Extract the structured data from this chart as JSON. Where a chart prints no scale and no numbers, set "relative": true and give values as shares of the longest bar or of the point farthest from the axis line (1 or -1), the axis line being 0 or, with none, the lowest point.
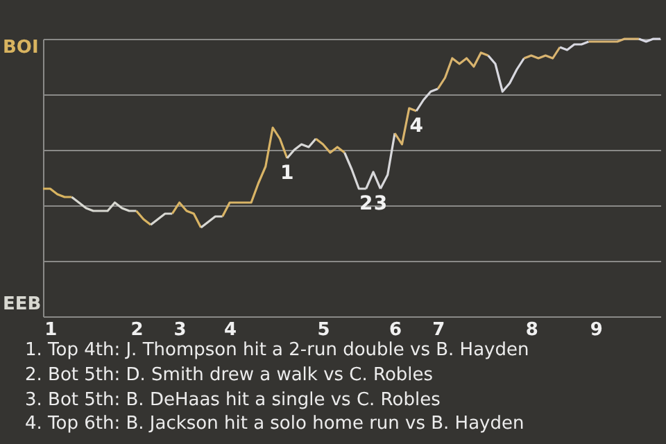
{
  "chart_data": {
    "type": "line",
    "relative": true,
    "categories": [
      null,
      "1",
      null,
      null,
      null,
      null,
      null,
      null,
      null,
      null,
      null,
      null,
      null,
      "2",
      null,
      null,
      null,
      null,
      null,
      "3",
      null,
      null,
      null,
      null,
      null,
      null,
      "4",
      null,
      null,
      null,
      null,
      null,
      null,
      null,
      null,
      null,
      null,
      null,
      null,
      "5",
      null,
      null,
      null,
      null,
      null,
      null,
      null,
      null,
      null,
      "6",
      null,
      null,
      null,
      null,
      null,
      "7",
      null,
      null,
      null,
      null,
      null,
      null,
      null,
      null,
      null,
      null,
      null,
      null,
      "8",
      null,
      null,
      null,
      null,
      null,
      null,
      null,
      null,
      "9",
      null,
      null,
      null,
      null,
      null,
      null,
      null,
      null,
      null
    ],
    "series": [
      {
        "color": "#d9b460",
        "values": [
          0.46,
          0.46,
          0.44,
          0.43,
          0.43,
          null,
          null,
          null,
          null,
          null,
          null,
          null,
          null,
          null,
          null,
          null,
          null,
          null,
          null,
          null,
          null,
          null,
          null,
          null,
          null,
          null,
          null,
          null,
          null,
          null,
          null,
          null,
          null,
          null,
          null,
          null,
          null,
          null,
          null,
          null,
          null,
          null,
          null,
          null,
          null,
          null,
          null,
          null,
          null,
          null,
          null,
          null,
          null,
          null,
          null,
          null,
          null,
          null,
          null,
          null,
          null,
          null,
          null,
          null,
          null,
          null,
          null,
          null,
          null,
          null,
          null,
          null,
          null,
          null,
          null,
          null,
          null,
          null,
          null,
          null,
          null,
          null,
          null,
          null,
          null,
          null,
          null
        ]
      },
      {
        "color": "#d8d8d1",
        "values": [
          null,
          null,
          null,
          null,
          0.43,
          0.41,
          0.39,
          0.38,
          0.38,
          0.38,
          0.41,
          0.39,
          0.38,
          0.38,
          null,
          null,
          null,
          null,
          null,
          null,
          null,
          null,
          null,
          null,
          null,
          null,
          null,
          null,
          null,
          null,
          null,
          null,
          null,
          null,
          null,
          null,
          null,
          null,
          null,
          null,
          null,
          null,
          null,
          null,
          null,
          null,
          null,
          null,
          null,
          null,
          null,
          null,
          null,
          null,
          null,
          null,
          null,
          null,
          null,
          null,
          null,
          null,
          null,
          null,
          null,
          null,
          null,
          null,
          null,
          null,
          null,
          null,
          null,
          null,
          null,
          null,
          null,
          null,
          null,
          null,
          null,
          null,
          null,
          null,
          null,
          null,
          null
        ]
      },
      {
        "color": "#d9b462",
        "values": [
          null,
          null,
          null,
          null,
          null,
          null,
          null,
          null,
          null,
          null,
          null,
          null,
          null,
          0.38,
          0.35,
          0.33,
          null,
          null,
          null,
          null,
          null,
          null,
          null,
          null,
          null,
          null,
          null,
          null,
          null,
          null,
          null,
          null,
          null,
          null,
          null,
          null,
          null,
          null,
          null,
          null,
          null,
          null,
          null,
          null,
          null,
          null,
          null,
          null,
          null,
          null,
          null,
          null,
          null,
          null,
          null,
          null,
          null,
          null,
          null,
          null,
          null,
          null,
          null,
          null,
          null,
          null,
          null,
          null,
          null,
          null,
          null,
          null,
          null,
          null,
          null,
          null,
          null,
          null,
          null,
          null,
          null,
          null,
          null,
          null,
          null,
          null,
          null
        ]
      },
      {
        "color": "#d8d8d3",
        "values": [
          null,
          null,
          null,
          null,
          null,
          null,
          null,
          null,
          null,
          null,
          null,
          null,
          null,
          null,
          null,
          0.33,
          0.35,
          0.37,
          0.37,
          null,
          null,
          null,
          null,
          null,
          null,
          null,
          null,
          null,
          null,
          null,
          null,
          null,
          null,
          null,
          null,
          null,
          null,
          null,
          null,
          null,
          null,
          null,
          null,
          null,
          null,
          null,
          null,
          null,
          null,
          null,
          null,
          null,
          null,
          null,
          null,
          null,
          null,
          null,
          null,
          null,
          null,
          null,
          null,
          null,
          null,
          null,
          null,
          null,
          null,
          null,
          null,
          null,
          null,
          null,
          null,
          null,
          null,
          null,
          null,
          null,
          null,
          null,
          null,
          null,
          null,
          null,
          null
        ]
      },
      {
        "color": "#d9b464",
        "values": [
          null,
          null,
          null,
          null,
          null,
          null,
          null,
          null,
          null,
          null,
          null,
          null,
          null,
          null,
          null,
          null,
          null,
          null,
          0.37,
          0.41,
          0.38,
          0.37,
          0.32,
          null,
          null,
          null,
          null,
          null,
          null,
          null,
          null,
          null,
          null,
          null,
          null,
          null,
          null,
          null,
          null,
          null,
          null,
          null,
          null,
          null,
          null,
          null,
          null,
          null,
          null,
          null,
          null,
          null,
          null,
          null,
          null,
          null,
          null,
          null,
          null,
          null,
          null,
          null,
          null,
          null,
          null,
          null,
          null,
          null,
          null,
          null,
          null,
          null,
          null,
          null,
          null,
          null,
          null,
          null,
          null,
          null,
          null,
          null,
          null,
          null,
          null,
          null,
          null
        ]
      },
      {
        "color": "#d8d8d5",
        "values": [
          null,
          null,
          null,
          null,
          null,
          null,
          null,
          null,
          null,
          null,
          null,
          null,
          null,
          null,
          null,
          null,
          null,
          null,
          null,
          null,
          null,
          null,
          0.32,
          0.34,
          0.36,
          0.36,
          null,
          null,
          null,
          null,
          null,
          null,
          null,
          null,
          null,
          null,
          null,
          null,
          null,
          null,
          null,
          null,
          null,
          null,
          null,
          null,
          null,
          null,
          null,
          null,
          null,
          null,
          null,
          null,
          null,
          null,
          null,
          null,
          null,
          null,
          null,
          null,
          null,
          null,
          null,
          null,
          null,
          null,
          null,
          null,
          null,
          null,
          null,
          null,
          null,
          null,
          null,
          null,
          null,
          null,
          null,
          null,
          null,
          null,
          null,
          null,
          null
        ]
      },
      {
        "name": "1",
        "color": "#d9b466",
        "values": [
          null,
          null,
          null,
          null,
          null,
          null,
          null,
          null,
          null,
          null,
          null,
          null,
          null,
          null,
          null,
          null,
          null,
          null,
          null,
          null,
          null,
          null,
          null,
          null,
          null,
          0.36,
          0.41,
          0.41,
          0.41,
          0.41,
          0.48,
          0.54,
          0.68,
          0.64,
          0.57,
          null,
          null,
          null,
          null,
          null,
          null,
          null,
          null,
          null,
          null,
          null,
          null,
          null,
          null,
          null,
          null,
          null,
          null,
          null,
          null,
          null,
          null,
          null,
          null,
          null,
          null,
          null,
          null,
          null,
          null,
          null,
          null,
          null,
          null,
          null,
          null,
          null,
          null,
          null,
          null,
          null,
          null,
          null,
          null,
          null,
          null,
          null,
          null,
          null,
          null,
          null,
          null
        ]
      },
      {
        "color": "#d8d8d7",
        "values": [
          null,
          null,
          null,
          null,
          null,
          null,
          null,
          null,
          null,
          null,
          null,
          null,
          null,
          null,
          null,
          null,
          null,
          null,
          null,
          null,
          null,
          null,
          null,
          null,
          null,
          null,
          null,
          null,
          null,
          null,
          null,
          null,
          null,
          null,
          0.57,
          0.6,
          0.62,
          0.61,
          0.64,
          null,
          null,
          null,
          null,
          null,
          null,
          null,
          null,
          null,
          null,
          null,
          null,
          null,
          null,
          null,
          null,
          null,
          null,
          null,
          null,
          null,
          null,
          null,
          null,
          null,
          null,
          null,
          null,
          null,
          null,
          null,
          null,
          null,
          null,
          null,
          null,
          null,
          null,
          null,
          null,
          null,
          null,
          null,
          null,
          null,
          null,
          null,
          null
        ]
      },
      {
        "color": "#d9b468",
        "values": [
          null,
          null,
          null,
          null,
          null,
          null,
          null,
          null,
          null,
          null,
          null,
          null,
          null,
          null,
          null,
          null,
          null,
          null,
          null,
          null,
          null,
          null,
          null,
          null,
          null,
          null,
          null,
          null,
          null,
          null,
          null,
          null,
          null,
          null,
          null,
          null,
          null,
          null,
          0.64,
          0.62,
          0.59,
          0.61,
          0.59,
          null,
          null,
          null,
          null,
          null,
          null,
          null,
          null,
          null,
          null,
          null,
          null,
          null,
          null,
          null,
          null,
          null,
          null,
          null,
          null,
          null,
          null,
          null,
          null,
          null,
          null,
          null,
          null,
          null,
          null,
          null,
          null,
          null,
          null,
          null,
          null,
          null,
          null,
          null,
          null,
          null,
          null,
          null,
          null
        ]
      },
      {
        "name": "2",
        "color": "#d8d8d9",
        "values": [
          null,
          null,
          null,
          null,
          null,
          null,
          null,
          null,
          null,
          null,
          null,
          null,
          null,
          null,
          null,
          null,
          null,
          null,
          null,
          null,
          null,
          null,
          null,
          null,
          null,
          null,
          null,
          null,
          null,
          null,
          null,
          null,
          null,
          null,
          null,
          null,
          null,
          null,
          null,
          null,
          null,
          null,
          0.59,
          0.53,
          0.46,
          0.46,
          null,
          null,
          null,
          null,
          null,
          null,
          null,
          null,
          null,
          null,
          null,
          null,
          null,
          null,
          null,
          null,
          null,
          null,
          null,
          null,
          null,
          null,
          null,
          null,
          null,
          null,
          null,
          null,
          null,
          null,
          null,
          null,
          null,
          null,
          null,
          null,
          null,
          null,
          null,
          null,
          null
        ]
      },
      {
        "name": "3",
        "color": "#d8d8da",
        "values": [
          null,
          null,
          null,
          null,
          null,
          null,
          null,
          null,
          null,
          null,
          null,
          null,
          null,
          null,
          null,
          null,
          null,
          null,
          null,
          null,
          null,
          null,
          null,
          null,
          null,
          null,
          null,
          null,
          null,
          null,
          null,
          null,
          null,
          null,
          null,
          null,
          null,
          null,
          null,
          null,
          null,
          null,
          null,
          null,
          null,
          0.46,
          0.52,
          0.46,
          null,
          null,
          null,
          null,
          null,
          null,
          null,
          null,
          null,
          null,
          null,
          null,
          null,
          null,
          null,
          null,
          null,
          null,
          null,
          null,
          null,
          null,
          null,
          null,
          null,
          null,
          null,
          null,
          null,
          null,
          null,
          null,
          null,
          null,
          null,
          null,
          null,
          null,
          null
        ]
      },
      {
        "color": "#d8d8db",
        "values": [
          null,
          null,
          null,
          null,
          null,
          null,
          null,
          null,
          null,
          null,
          null,
          null,
          null,
          null,
          null,
          null,
          null,
          null,
          null,
          null,
          null,
          null,
          null,
          null,
          null,
          null,
          null,
          null,
          null,
          null,
          null,
          null,
          null,
          null,
          null,
          null,
          null,
          null,
          null,
          null,
          null,
          null,
          null,
          null,
          null,
          null,
          null,
          0.46,
          0.51,
          0.66,
          null,
          null,
          null,
          null,
          null,
          null,
          null,
          null,
          null,
          null,
          null,
          null,
          null,
          null,
          null,
          null,
          null,
          null,
          null,
          null,
          null,
          null,
          null,
          null,
          null,
          null,
          null,
          null,
          null,
          null,
          null,
          null,
          null,
          null,
          null,
          null,
          null
        ]
      },
      {
        "name": "4",
        "color": "#d9b46c",
        "values": [
          null,
          null,
          null,
          null,
          null,
          null,
          null,
          null,
          null,
          null,
          null,
          null,
          null,
          null,
          null,
          null,
          null,
          null,
          null,
          null,
          null,
          null,
          null,
          null,
          null,
          null,
          null,
          null,
          null,
          null,
          null,
          null,
          null,
          null,
          null,
          null,
          null,
          null,
          null,
          null,
          null,
          null,
          null,
          null,
          null,
          null,
          null,
          null,
          null,
          0.66,
          0.62,
          0.75,
          0.74,
          null,
          null,
          null,
          null,
          null,
          null,
          null,
          null,
          null,
          null,
          null,
          null,
          null,
          null,
          null,
          null,
          null,
          null,
          null,
          null,
          null,
          null,
          null,
          null,
          null,
          null,
          null,
          null,
          null,
          null,
          null,
          null,
          null,
          null
        ]
      },
      {
        "color": "#d8d8dd",
        "values": [
          null,
          null,
          null,
          null,
          null,
          null,
          null,
          null,
          null,
          null,
          null,
          null,
          null,
          null,
          null,
          null,
          null,
          null,
          null,
          null,
          null,
          null,
          null,
          null,
          null,
          null,
          null,
          null,
          null,
          null,
          null,
          null,
          null,
          null,
          null,
          null,
          null,
          null,
          null,
          null,
          null,
          null,
          null,
          null,
          null,
          null,
          null,
          null,
          null,
          null,
          null,
          null,
          0.74,
          0.78,
          0.81,
          0.82,
          null,
          null,
          null,
          null,
          null,
          null,
          null,
          null,
          null,
          null,
          null,
          null,
          null,
          null,
          null,
          null,
          null,
          null,
          null,
          null,
          null,
          null,
          null,
          null,
          null,
          null,
          null,
          null,
          null,
          null,
          null
        ]
      },
      {
        "color": "#d9b46e",
        "values": [
          null,
          null,
          null,
          null,
          null,
          null,
          null,
          null,
          null,
          null,
          null,
          null,
          null,
          null,
          null,
          null,
          null,
          null,
          null,
          null,
          null,
          null,
          null,
          null,
          null,
          null,
          null,
          null,
          null,
          null,
          null,
          null,
          null,
          null,
          null,
          null,
          null,
          null,
          null,
          null,
          null,
          null,
          null,
          null,
          null,
          null,
          null,
          null,
          null,
          null,
          null,
          null,
          null,
          null,
          null,
          0.82,
          0.86,
          0.93,
          0.91,
          0.93,
          0.9,
          0.95,
          0.94,
          null,
          null,
          null,
          null,
          null,
          null,
          null,
          null,
          null,
          null,
          null,
          null,
          null,
          null,
          null,
          null,
          null,
          null,
          null,
          null,
          null,
          null,
          null,
          null
        ]
      },
      {
        "color": "#d8d8df",
        "values": [
          null,
          null,
          null,
          null,
          null,
          null,
          null,
          null,
          null,
          null,
          null,
          null,
          null,
          null,
          null,
          null,
          null,
          null,
          null,
          null,
          null,
          null,
          null,
          null,
          null,
          null,
          null,
          null,
          null,
          null,
          null,
          null,
          null,
          null,
          null,
          null,
          null,
          null,
          null,
          null,
          null,
          null,
          null,
          null,
          null,
          null,
          null,
          null,
          null,
          null,
          null,
          null,
          null,
          null,
          null,
          null,
          null,
          null,
          null,
          null,
          null,
          null,
          0.94,
          0.91,
          0.81,
          0.84,
          0.89,
          0.93,
          null,
          null,
          null,
          null,
          null,
          null,
          null,
          null,
          null,
          null,
          null,
          null,
          null,
          null,
          null,
          null,
          null,
          null,
          null
        ]
      },
      {
        "color": "#d9b470",
        "values": [
          null,
          null,
          null,
          null,
          null,
          null,
          null,
          null,
          null,
          null,
          null,
          null,
          null,
          null,
          null,
          null,
          null,
          null,
          null,
          null,
          null,
          null,
          null,
          null,
          null,
          null,
          null,
          null,
          null,
          null,
          null,
          null,
          null,
          null,
          null,
          null,
          null,
          null,
          null,
          null,
          null,
          null,
          null,
          null,
          null,
          null,
          null,
          null,
          null,
          null,
          null,
          null,
          null,
          null,
          null,
          null,
          null,
          null,
          null,
          null,
          null,
          null,
          null,
          null,
          null,
          null,
          null,
          0.93,
          0.94,
          0.93,
          0.94,
          0.93,
          0.97,
          null,
          null,
          null,
          null,
          null,
          null,
          null,
          null,
          null,
          null,
          null,
          null,
          null,
          null
        ]
      },
      {
        "color": "#d8d8e1",
        "values": [
          null,
          null,
          null,
          null,
          null,
          null,
          null,
          null,
          null,
          null,
          null,
          null,
          null,
          null,
          null,
          null,
          null,
          null,
          null,
          null,
          null,
          null,
          null,
          null,
          null,
          null,
          null,
          null,
          null,
          null,
          null,
          null,
          null,
          null,
          null,
          null,
          null,
          null,
          null,
          null,
          null,
          null,
          null,
          null,
          null,
          null,
          null,
          null,
          null,
          null,
          null,
          null,
          null,
          null,
          null,
          null,
          null,
          null,
          null,
          null,
          null,
          null,
          null,
          null,
          null,
          null,
          null,
          null,
          null,
          null,
          null,
          null,
          0.97,
          0.96,
          0.98,
          0.98,
          0.99,
          null,
          null,
          null,
          null,
          null,
          null,
          null,
          null,
          null,
          null
        ]
      },
      {
        "color": "#d9b472",
        "values": [
          null,
          null,
          null,
          null,
          null,
          null,
          null,
          null,
          null,
          null,
          null,
          null,
          null,
          null,
          null,
          null,
          null,
          null,
          null,
          null,
          null,
          null,
          null,
          null,
          null,
          null,
          null,
          null,
          null,
          null,
          null,
          null,
          null,
          null,
          null,
          null,
          null,
          null,
          null,
          null,
          null,
          null,
          null,
          null,
          null,
          null,
          null,
          null,
          null,
          null,
          null,
          null,
          null,
          null,
          null,
          null,
          null,
          null,
          null,
          null,
          null,
          null,
          null,
          null,
          null,
          null,
          null,
          null,
          null,
          null,
          null,
          null,
          null,
          null,
          null,
          null,
          0.99,
          0.99,
          0.99,
          0.99,
          0.99,
          1.0,
          1.0,
          1.0,
          null,
          null,
          null
        ]
      },
      {
        "color": "#d8d8e3",
        "values": [
          null,
          null,
          null,
          null,
          null,
          null,
          null,
          null,
          null,
          null,
          null,
          null,
          null,
          null,
          null,
          null,
          null,
          null,
          null,
          null,
          null,
          null,
          null,
          null,
          null,
          null,
          null,
          null,
          null,
          null,
          null,
          null,
          null,
          null,
          null,
          null,
          null,
          null,
          null,
          null,
          null,
          null,
          null,
          null,
          null,
          null,
          null,
          null,
          null,
          null,
          null,
          null,
          null,
          null,
          null,
          null,
          null,
          null,
          null,
          null,
          null,
          null,
          null,
          null,
          null,
          null,
          null,
          null,
          null,
          null,
          null,
          null,
          null,
          null,
          null,
          null,
          null,
          null,
          null,
          null,
          null,
          null,
          null,
          1.0,
          0.99,
          1.0,
          1.0
        ]
      }
    ],
    "grid": "y",
    "annotations": [
      "BOI",
      "EEB",
      "1. Top 4th: J. Thompson hit a 2-run double vs B. Hayden",
      "2. Bot 5th: D. Smith drew a walk vs C. Robles",
      "3. Bot 5th: B. DeHaas hit a single vs C. Robles",
      "4. Top 6th: B. Jackson hit a solo home run vs B. Hayden"
    ]
  }
}
